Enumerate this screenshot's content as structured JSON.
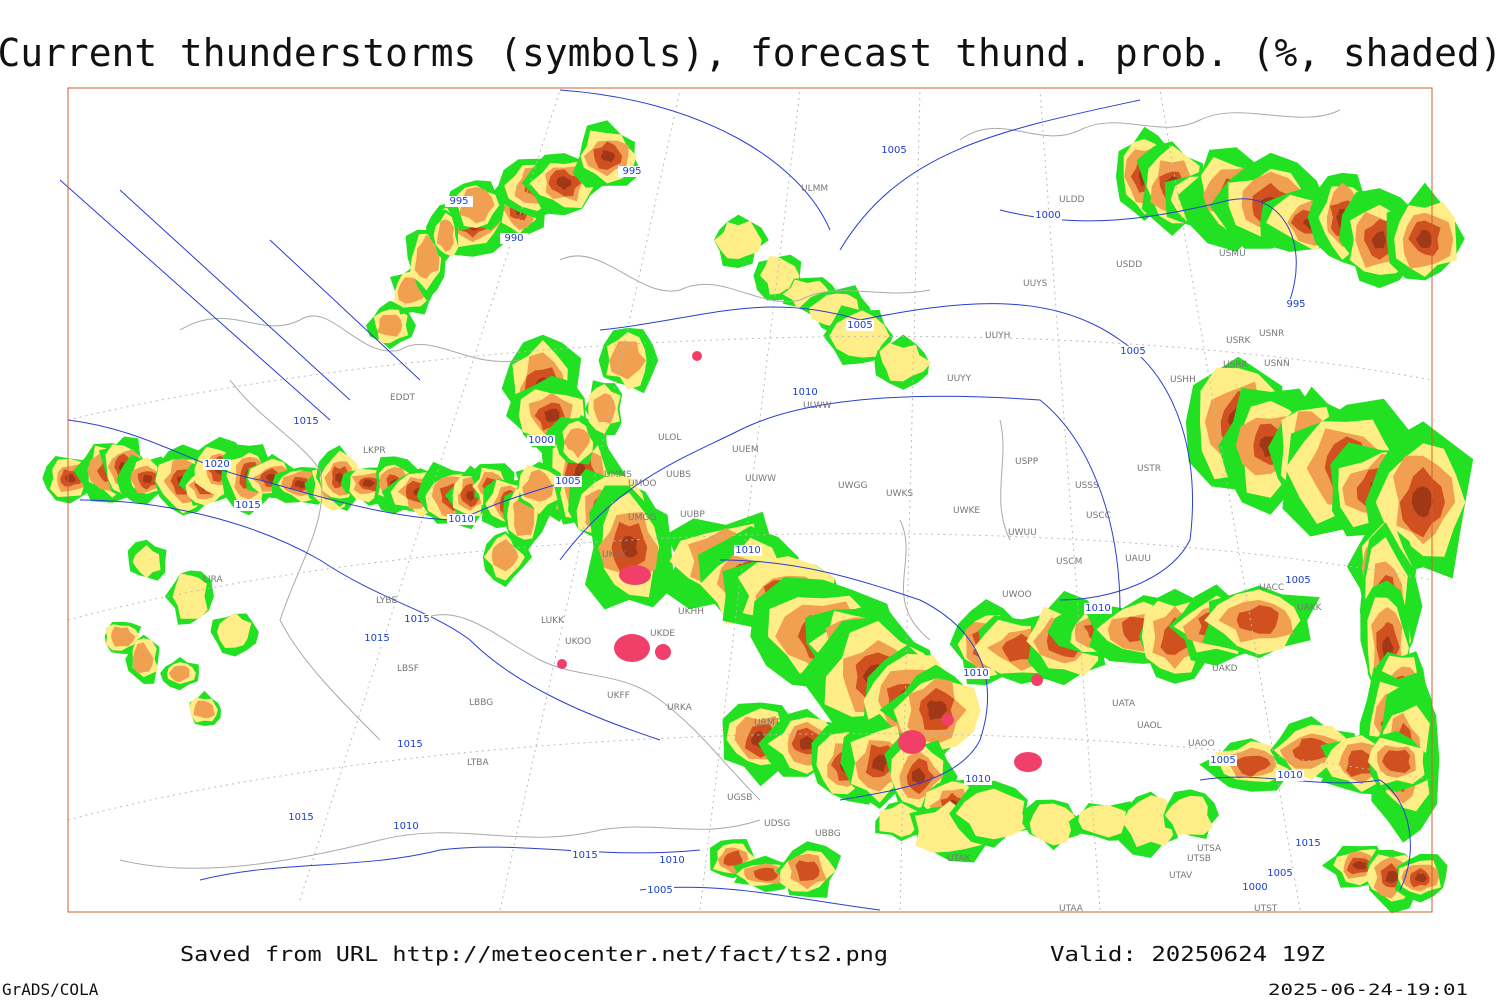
{
  "header": {
    "title": "Current thunderstorms (symbols), forecast thund. prob. (%, shaded)"
  },
  "map": {
    "isobar_labels": [
      "995",
      "990",
      "995",
      "1000",
      "1005",
      "1005",
      "1015",
      "1020",
      "1015",
      "1010",
      "1000",
      "1005",
      "1005",
      "1010",
      "1010",
      "1015",
      "1015",
      "1015",
      "1015",
      "1010",
      "1015",
      "1010",
      "1005",
      "1010",
      "1005",
      "1010",
      "995",
      "1005",
      "1010",
      "1015",
      "1000",
      "1005",
      "1010"
    ],
    "stations": [
      "EDDT",
      "LKPR",
      "LIRA",
      "LYBE",
      "LBSF",
      "LUKK",
      "UKOO",
      "UKFF",
      "URKA",
      "UMMS",
      "UMOO",
      "UUBS",
      "UUEM",
      "ULOL",
      "UUWW",
      "UMGG",
      "UUBP",
      "UKKK",
      "UKHH",
      "UKDE",
      "UWGG",
      "UWKS",
      "UWKE",
      "UWUU",
      "USSS",
      "USPP",
      "USTR",
      "USCC",
      "USCM",
      "UAUU",
      "UWOO",
      "UUYS",
      "UUYH",
      "UUYY",
      "ULDD",
      "USDD",
      "USHH",
      "USMU",
      "USRK",
      "USNR",
      "USRR",
      "USNN",
      "UATA",
      "UAOL",
      "UAOO",
      "UAKD",
      "UAKK",
      "UACC",
      "ULMM",
      "ULWW",
      "URMT",
      "LTBA",
      "LBBG",
      "UGSB",
      "UTSA",
      "UTSB",
      "UTAV",
      "UTST",
      "UTAA",
      "UTAK",
      "UDSG",
      "UBBG"
    ]
  },
  "footer": {
    "source": "Saved from URL http://meteocenter.net/fact/ts2.png",
    "valid": "Valid: 20250624 19Z",
    "credit": "GrADS/COLA",
    "timestamp": "2025-06-24-19:01"
  }
}
